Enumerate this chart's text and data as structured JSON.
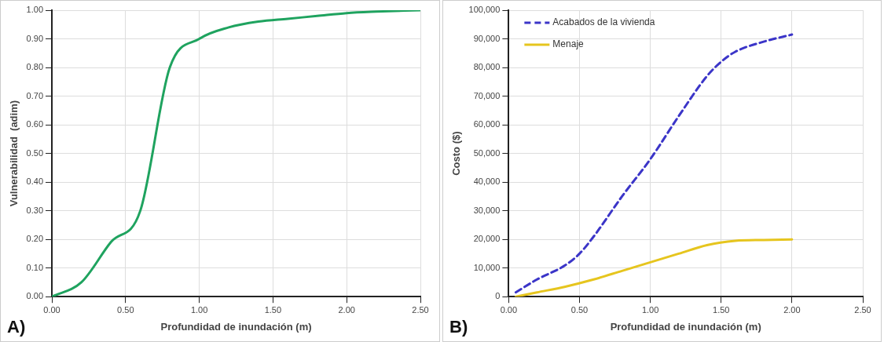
{
  "chart_data": [
    {
      "type": "line",
      "xlabel": "Profundidad de inundación (m)",
      "ylabel": "Vulnerabilidad  (adim)",
      "annotations": [
        "A)"
      ],
      "series": [
        {
          "color": "#1fa35f",
          "x": [
            0,
            0.2,
            0.4,
            0.6,
            0.8,
            1.0,
            1.2,
            1.4,
            1.6,
            1.8,
            2.0,
            2.2,
            2.5
          ],
          "values": [
            0,
            0.05,
            0.19,
            0.3,
            0.8,
            0.9,
            0.94,
            0.96,
            0.97,
            0.98,
            0.99,
            0.995,
            1.0
          ]
        }
      ],
      "xlim": [
        0,
        2.5
      ],
      "xticks": [
        {
          "value": 0,
          "label": "0.00"
        },
        {
          "value": 0.5,
          "label": "0.50"
        },
        {
          "value": 1,
          "label": "1.00"
        },
        {
          "value": 1.5,
          "label": "1.50"
        },
        {
          "value": 2,
          "label": "2.00"
        },
        {
          "value": 2.5,
          "label": "2.50"
        }
      ],
      "ylim": [
        0,
        1
      ],
      "yticks": [
        {
          "value": 0,
          "label": "0.00"
        },
        {
          "value": 0.1,
          "label": "0.10"
        },
        {
          "value": 0.2,
          "label": "0.20"
        },
        {
          "value": 0.3,
          "label": "0.30"
        },
        {
          "value": 0.4,
          "label": "0.40"
        },
        {
          "value": 0.5,
          "label": "0.50"
        },
        {
          "value": 0.6,
          "label": "0.60"
        },
        {
          "value": 0.7,
          "label": "0.70"
        },
        {
          "value": 0.8,
          "label": "0.80"
        },
        {
          "value": 0.9,
          "label": "0.90"
        },
        {
          "value": 1,
          "label": "1.00"
        }
      ],
      "grid": true,
      "legend": false,
      "marker": "none"
    },
    {
      "type": "line",
      "xlabel": "Profundidad de inundación (m)",
      "ylabel": "Costo ($)",
      "annotations": [
        "B)"
      ],
      "series": [
        {
          "name": "Acabados de la vivienda",
          "color": "#3b35c8",
          "line_style": "dashed",
          "x": [
            0.05,
            0.2,
            0.4,
            0.5,
            0.6,
            0.8,
            1.0,
            1.2,
            1.4,
            1.5,
            1.6,
            1.8,
            2.0
          ],
          "values": [
            1500,
            6000,
            11000,
            15000,
            21000,
            35000,
            48000,
            63000,
            77000,
            82000,
            85500,
            89000,
            91500
          ]
        },
        {
          "name": "Menaje",
          "color": "#e6c51e",
          "line_style": "solid",
          "x": [
            0.05,
            0.2,
            0.4,
            0.6,
            0.8,
            1.0,
            1.2,
            1.4,
            1.6,
            1.8,
            2.0
          ],
          "values": [
            0,
            1500,
            3500,
            6000,
            9000,
            12000,
            15000,
            18000,
            19500,
            19800,
            20000
          ]
        }
      ],
      "xlim": [
        0,
        2.5
      ],
      "xticks": [
        {
          "value": 0,
          "label": "0.00"
        },
        {
          "value": 0.5,
          "label": "0.50"
        },
        {
          "value": 1,
          "label": "1.00"
        },
        {
          "value": 1.5,
          "label": "1.50"
        },
        {
          "value": 2,
          "label": "2.00"
        },
        {
          "value": 2.5,
          "label": "2.50"
        }
      ],
      "ylim": [
        0,
        100000
      ],
      "yticks": [
        0,
        {
          "value": 10000,
          "label": "10,000"
        },
        {
          "value": 20000,
          "label": "20,000"
        },
        {
          "value": 30000,
          "label": "30,000"
        },
        {
          "value": 40000,
          "label": "40,000"
        },
        {
          "value": 50000,
          "label": "50,000"
        },
        {
          "value": 60000,
          "label": "60,000"
        },
        {
          "value": 70000,
          "label": "70,000"
        },
        {
          "value": 80000,
          "label": "80,000"
        },
        {
          "value": 90000,
          "label": "90,000"
        },
        {
          "value": 100000,
          "label": "100,000"
        }
      ],
      "grid": true,
      "legend": "top left",
      "marker": "none"
    }
  ]
}
